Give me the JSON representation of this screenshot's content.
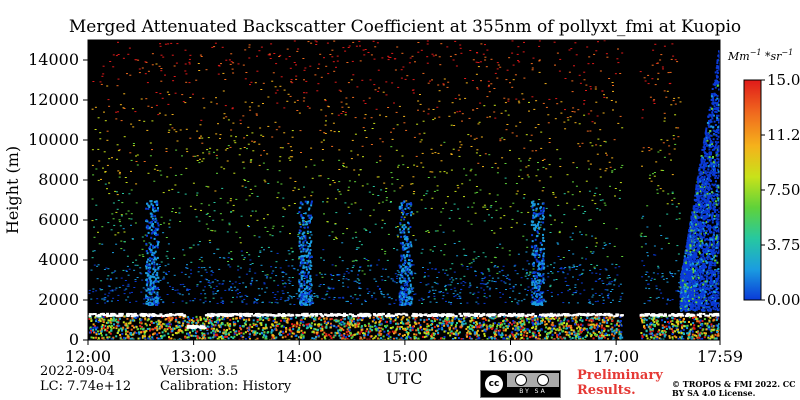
{
  "chart_data": {
    "type": "heatmap",
    "title": "Merged Attenuated Backscatter Coefficient at 355nm of pollyxt_fmi at Kuopio",
    "xlabel": "UTC",
    "ylabel": "Height (m)",
    "x_ticks": [
      "12:00",
      "13:00",
      "14:00",
      "15:00",
      "16:00",
      "17:00",
      "17:59"
    ],
    "x_range_hours": [
      12.0,
      17.9833
    ],
    "y_ticks": [
      0,
      2000,
      4000,
      6000,
      8000,
      10000,
      12000,
      14000
    ],
    "y_range": [
      0,
      15000
    ],
    "colorbar": {
      "unit": "Mm^{-1}*sr^{-1}",
      "range": [
        0.0,
        15.0
      ],
      "tick_labels": [
        "0.00",
        "3.75",
        "7.50",
        "11.25",
        "15.00"
      ],
      "colormap": "jet",
      "colors": [
        "#0a3ad8",
        "#1b9de0",
        "#27c8a0",
        "#5fd23a",
        "#c8e21a",
        "#f5b21b",
        "#f06a1e",
        "#e01a1a"
      ]
    },
    "features": {
      "cloud_base_height_m": 1300,
      "boundary_layer_top_m": 1300,
      "no_data_gap_hours": [
        17.05,
        17.22
      ],
      "dense_backscatter_region_hours": [
        17.6,
        17.98
      ]
    },
    "grid": false
  },
  "footer": {
    "date": "2022-09-04",
    "lc": "LC: 7.74e+12",
    "version": "Version: 3.5",
    "calibration": "Calibration: History",
    "preliminary": "Preliminary Results.",
    "copyright": "© TROPOS & FMI 2022. CC BY SA 4.0 License.",
    "license_badge_text": "BY SA",
    "license_icon": "cc-by-sa-icon"
  }
}
